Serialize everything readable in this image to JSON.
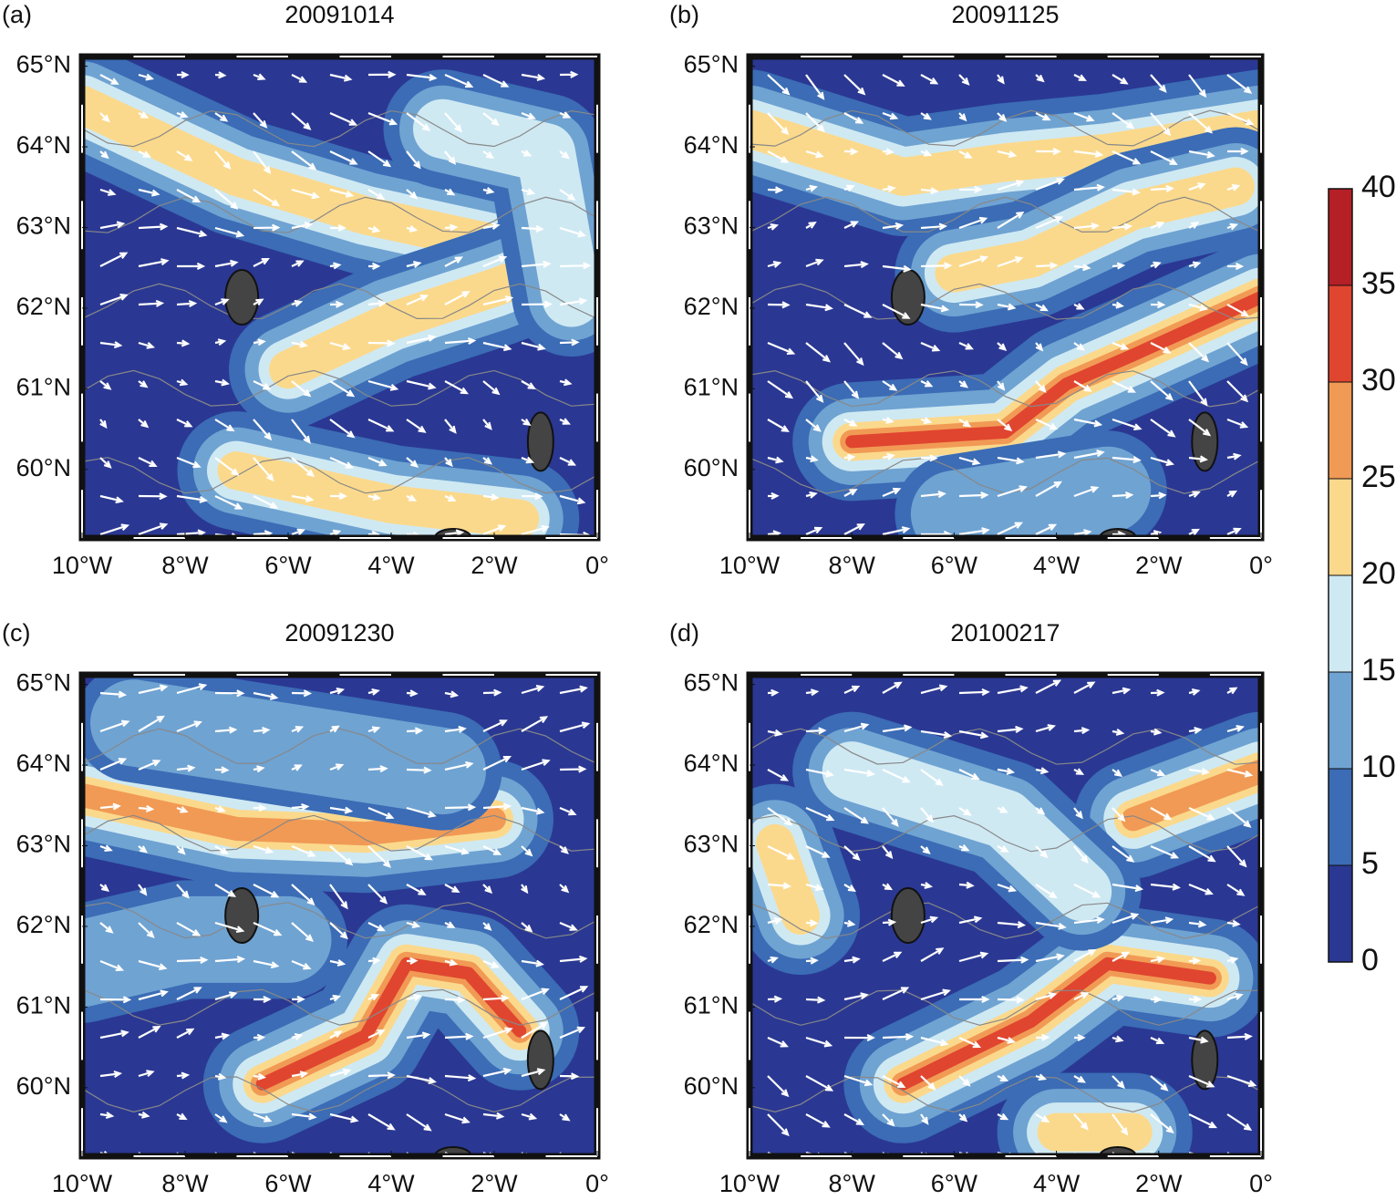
{
  "panels": [
    {
      "label": "(a)",
      "title": "20091014",
      "xlim": [
        -10,
        0
      ],
      "ylim": [
        59.15,
        65.12
      ],
      "xticks": [
        {
          "value": -10,
          "label": "10°W"
        },
        {
          "value": -8,
          "label": "8°W"
        },
        {
          "value": -6,
          "label": "6°W"
        },
        {
          "value": -4,
          "label": "4°W"
        },
        {
          "value": -2,
          "label": "2°W"
        },
        {
          "value": 0,
          "label": "0°"
        }
      ],
      "yticks": [
        {
          "value": 60,
          "label": "60°N"
        },
        {
          "value": 61,
          "label": "61°N"
        },
        {
          "value": 62,
          "label": "62°N"
        },
        {
          "value": 63,
          "label": "63°N"
        },
        {
          "value": 64,
          "label": "64°N"
        },
        {
          "value": 65,
          "label": "65°N"
        }
      ]
    },
    {
      "label": "(b)",
      "title": "20091125",
      "xlim": [
        -10,
        0
      ],
      "ylim": [
        59.15,
        65.12
      ],
      "xticks": [
        {
          "value": -10,
          "label": "10°W"
        },
        {
          "value": -8,
          "label": "8°W"
        },
        {
          "value": -6,
          "label": "6°W"
        },
        {
          "value": -4,
          "label": "4°W"
        },
        {
          "value": -2,
          "label": "2°W"
        },
        {
          "value": 0,
          "label": "0°"
        }
      ],
      "yticks": [
        {
          "value": 60,
          "label": "60°N"
        },
        {
          "value": 61,
          "label": "61°N"
        },
        {
          "value": 62,
          "label": "62°N"
        },
        {
          "value": 63,
          "label": "63°N"
        },
        {
          "value": 64,
          "label": "64°N"
        },
        {
          "value": 65,
          "label": "65°N"
        }
      ]
    },
    {
      "label": "(c)",
      "title": "20091230",
      "xlim": [
        -10,
        0
      ],
      "ylim": [
        59.15,
        65.12
      ],
      "xticks": [
        {
          "value": -10,
          "label": "10°W"
        },
        {
          "value": -8,
          "label": "8°W"
        },
        {
          "value": -6,
          "label": "6°W"
        },
        {
          "value": -4,
          "label": "4°W"
        },
        {
          "value": -2,
          "label": "2°W"
        },
        {
          "value": 0,
          "label": "0°"
        }
      ],
      "yticks": [
        {
          "value": 60,
          "label": "60°N"
        },
        {
          "value": 61,
          "label": "61°N"
        },
        {
          "value": 62,
          "label": "62°N"
        },
        {
          "value": 63,
          "label": "63°N"
        },
        {
          "value": 64,
          "label": "64°N"
        },
        {
          "value": 65,
          "label": "65°N"
        }
      ]
    },
    {
      "label": "(d)",
      "title": "20100217",
      "xlim": [
        -10,
        0
      ],
      "ylim": [
        59.15,
        65.12
      ],
      "xticks": [
        {
          "value": -10,
          "label": "10°W"
        },
        {
          "value": -8,
          "label": "8°W"
        },
        {
          "value": -6,
          "label": "6°W"
        },
        {
          "value": -4,
          "label": "4°W"
        },
        {
          "value": -2,
          "label": "2°W"
        },
        {
          "value": 0,
          "label": "0°"
        }
      ],
      "yticks": [
        {
          "value": 60,
          "label": "60°N"
        },
        {
          "value": 61,
          "label": "61°N"
        },
        {
          "value": 62,
          "label": "62°N"
        },
        {
          "value": 63,
          "label": "63°N"
        },
        {
          "value": 64,
          "label": "64°N"
        },
        {
          "value": 65,
          "label": "65°N"
        }
      ]
    }
  ],
  "colorbar": {
    "lim": [
      0,
      40
    ],
    "ticks": [
      0,
      5,
      10,
      15,
      20,
      25,
      30,
      35,
      40
    ],
    "colors": [
      "#2a3893",
      "#3b6cb5",
      "#6fa3d2",
      "#cfe9f3",
      "#fbd98c",
      "#f19a55",
      "#e0452f",
      "#b51f26"
    ]
  }
}
